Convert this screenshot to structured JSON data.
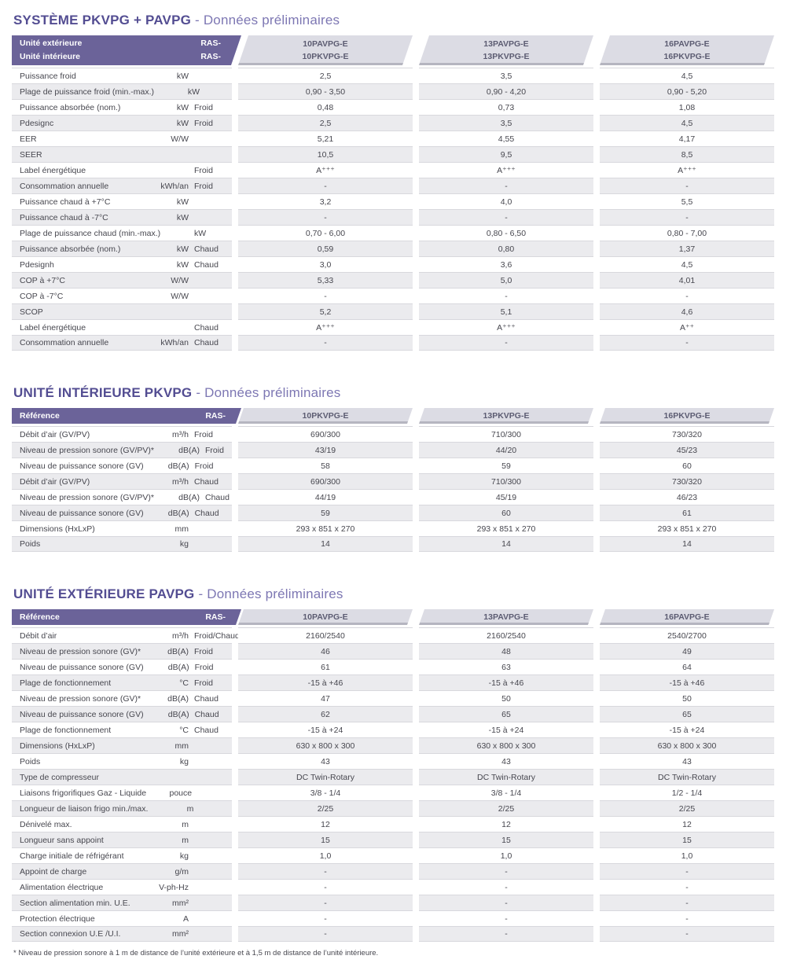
{
  "colors": {
    "header_band_purple": "#6b6399",
    "title_purple": "#534d92",
    "subtitle_purple": "#7d77b3",
    "column_header_bg": "#dcdce4",
    "column_header_shadow": "#b5b5c0",
    "row_stripe_gray": "#ebebee"
  },
  "footnote": "* Niveau de pression sonore à 1 m de distance de l’unité extérieure et à 1,5 m de distance de l’unité intérieure.",
  "sections": [
    {
      "title_bold": "SYSTÈME PKVPG + PAVPG",
      "title_light": "- Données préliminaires",
      "header": {
        "left_rows": [
          {
            "label": "Unité extérieure",
            "ras": "RAS-"
          },
          {
            "label": "Unité intérieure",
            "ras": "RAS-"
          }
        ],
        "columns": [
          [
            "10PAVPG-E",
            "10PKVPG-E"
          ],
          [
            "13PAVPG-E",
            "13PKVPG-E"
          ],
          [
            "16PAVPG-E",
            "16PKVPG-E"
          ]
        ]
      },
      "rows": [
        {
          "label": "Puissance froid",
          "unit": "kW",
          "mode": "",
          "values": [
            "2,5",
            "3,5",
            "4,5"
          ]
        },
        {
          "label": "Plage de puissance froid (min.-max.)",
          "unit": "kW",
          "mode": "",
          "values": [
            "0,90 - 3,50",
            "0,90 - 4,20",
            "0,90 - 5,20"
          ]
        },
        {
          "label": "Puissance absorbée (nom.)",
          "unit": "kW",
          "mode": "Froid",
          "values": [
            "0,48",
            "0,73",
            "1,08"
          ]
        },
        {
          "label": "Pdesignc",
          "unit": "kW",
          "mode": "Froid",
          "values": [
            "2,5",
            "3,5",
            "4,5"
          ]
        },
        {
          "label": "EER",
          "unit": "W/W",
          "mode": "",
          "values": [
            "5,21",
            "4,55",
            "4,17"
          ]
        },
        {
          "label": "SEER",
          "unit": "",
          "mode": "",
          "values": [
            "10,5",
            "9,5",
            "8,5"
          ]
        },
        {
          "label": "Label énergétique",
          "unit": "",
          "mode": "Froid",
          "values": [
            "A⁺⁺⁺",
            "A⁺⁺⁺",
            "A⁺⁺⁺"
          ]
        },
        {
          "label": "Consommation annuelle",
          "unit": "kWh/an",
          "mode": "Froid",
          "values": [
            "-",
            "-",
            "-"
          ]
        },
        {
          "label": "Puissance chaud à +7°C",
          "unit": "kW",
          "mode": "",
          "values": [
            "3,2",
            "4,0",
            "5,5"
          ]
        },
        {
          "label": "Puissance chaud à -7°C",
          "unit": "kW",
          "mode": "",
          "values": [
            "-",
            "-",
            "-"
          ]
        },
        {
          "label": "Plage de puissance chaud (min.-max.)",
          "unit": "kW",
          "mode": "",
          "values": [
            "0,70 - 6,00",
            "0,80 - 6,50",
            "0,80 - 7,00"
          ]
        },
        {
          "label": "Puissance absorbée (nom.)",
          "unit": "kW",
          "mode": "Chaud",
          "values": [
            "0,59",
            "0,80",
            "1,37"
          ]
        },
        {
          "label": "Pdesignh",
          "unit": "kW",
          "mode": "Chaud",
          "values": [
            "3,0",
            "3,6",
            "4,5"
          ]
        },
        {
          "label": "COP à +7°C",
          "unit": "W/W",
          "mode": "",
          "values": [
            "5,33",
            "5,0",
            "4,01"
          ]
        },
        {
          "label": "COP à -7°C",
          "unit": "W/W",
          "mode": "",
          "values": [
            "-",
            "-",
            "-"
          ]
        },
        {
          "label": "SCOP",
          "unit": "",
          "mode": "",
          "values": [
            "5,2",
            "5,1",
            "4,6"
          ]
        },
        {
          "label": "Label énergétique",
          "unit": "",
          "mode": "Chaud",
          "values": [
            "A⁺⁺⁺",
            "A⁺⁺⁺",
            "A⁺⁺"
          ]
        },
        {
          "label": "Consommation annuelle",
          "unit": "kWh/an",
          "mode": "Chaud",
          "values": [
            "-",
            "-",
            "-"
          ]
        }
      ]
    },
    {
      "title_bold": "UNITÉ INTÉRIEURE PKVPG",
      "title_light": "- Données préliminaires",
      "header": {
        "left_rows": [
          {
            "label": "Référence",
            "ras": "RAS-"
          }
        ],
        "columns": [
          [
            "10PKVPG-E"
          ],
          [
            "13PKVPG-E"
          ],
          [
            "16PKVPG-E"
          ]
        ]
      },
      "rows": [
        {
          "label": "Débit d’air (GV/PV)",
          "unit": "m³/h",
          "mode": "Froid",
          "values": [
            "690/300",
            "710/300",
            "730/320"
          ]
        },
        {
          "label": "Niveau de pression sonore (GV/PV)*",
          "unit": "dB(A)",
          "mode": "Froid",
          "values": [
            "43/19",
            "44/20",
            "45/23"
          ]
        },
        {
          "label": "Niveau de puissance sonore (GV)",
          "unit": "dB(A)",
          "mode": "Froid",
          "values": [
            "58",
            "59",
            "60"
          ]
        },
        {
          "label": "Débit d’air (GV/PV)",
          "unit": "m³/h",
          "mode": "Chaud",
          "values": [
            "690/300",
            "710/300",
            "730/320"
          ]
        },
        {
          "label": "Niveau de pression sonore (GV/PV)*",
          "unit": "dB(A)",
          "mode": "Chaud",
          "values": [
            "44/19",
            "45/19",
            "46/23"
          ]
        },
        {
          "label": "Niveau de puissance sonore (GV)",
          "unit": "dB(A)",
          "mode": "Chaud",
          "values": [
            "59",
            "60",
            "61"
          ]
        },
        {
          "label": "Dimensions (HxLxP)",
          "unit": "mm",
          "mode": "",
          "values": [
            "293 x 851 x 270",
            "293 x 851 x 270",
            "293 x 851 x 270"
          ]
        },
        {
          "label": "Poids",
          "unit": "kg",
          "mode": "",
          "values": [
            "14",
            "14",
            "14"
          ]
        }
      ]
    },
    {
      "title_bold": "UNITÉ EXTÉRIEURE PAVPG",
      "title_light": "- Données préliminaires",
      "header": {
        "left_rows": [
          {
            "label": "Référence",
            "ras": "RAS-"
          }
        ],
        "columns": [
          [
            "10PAVPG-E"
          ],
          [
            "13PAVPG-E"
          ],
          [
            "16PAVPG-E"
          ]
        ]
      },
      "rows": [
        {
          "label": "Débit d’air",
          "unit": "m³/h",
          "mode": "Froid/Chaud",
          "values": [
            "2160/2540",
            "2160/2540",
            "2540/2700"
          ]
        },
        {
          "label": "Niveau de pression sonore (GV)*",
          "unit": "dB(A)",
          "mode": "Froid",
          "values": [
            "46",
            "48",
            "49"
          ]
        },
        {
          "label": "Niveau de puissance sonore (GV)",
          "unit": "dB(A)",
          "mode": "Froid",
          "values": [
            "61",
            "63",
            "64"
          ]
        },
        {
          "label": "Plage de fonctionnement",
          "unit": "°C",
          "mode": "Froid",
          "values": [
            "-15 à +46",
            "-15 à +46",
            "-15 à +46"
          ]
        },
        {
          "label": "Niveau de pression sonore (GV)*",
          "unit": "dB(A)",
          "mode": "Chaud",
          "values": [
            "47",
            "50",
            "50"
          ]
        },
        {
          "label": "Niveau de puissance sonore (GV)",
          "unit": "dB(A)",
          "mode": "Chaud",
          "values": [
            "62",
            "65",
            "65"
          ]
        },
        {
          "label": "Plage de fonctionnement",
          "unit": "°C",
          "mode": "Chaud",
          "values": [
            "-15 à +24",
            "-15 à +24",
            "-15 à +24"
          ]
        },
        {
          "label": "Dimensions (HxLxP)",
          "unit": "mm",
          "mode": "",
          "values": [
            "630 x 800 x 300",
            "630 x 800 x 300",
            "630 x 800 x 300"
          ]
        },
        {
          "label": "Poids",
          "unit": "kg",
          "mode": "",
          "values": [
            "43",
            "43",
            "43"
          ]
        },
        {
          "label": "Type de compresseur",
          "unit": "",
          "mode": "",
          "values": [
            "DC Twin-Rotary",
            "DC Twin-Rotary",
            "DC Twin-Rotary"
          ]
        },
        {
          "label": "Liaisons frigorifiques Gaz - Liquide",
          "unit": "pouce",
          "mode": "",
          "values": [
            "3/8 - 1/4",
            "3/8 - 1/4",
            "1/2 - 1/4"
          ]
        },
        {
          "label": "Longueur de liaison frigo min./max.",
          "unit": "m",
          "mode": "",
          "values": [
            "2/25",
            "2/25",
            "2/25"
          ]
        },
        {
          "label": "Dénivelé max.",
          "unit": "m",
          "mode": "",
          "values": [
            "12",
            "12",
            "12"
          ]
        },
        {
          "label": "Longueur sans appoint",
          "unit": "m",
          "mode": "",
          "values": [
            "15",
            "15",
            "15"
          ]
        },
        {
          "label": "Charge initiale de réfrigérant",
          "unit": "kg",
          "mode": "",
          "values": [
            "1,0",
            "1,0",
            "1,0"
          ]
        },
        {
          "label": "Appoint de charge",
          "unit": "g/m",
          "mode": "",
          "values": [
            "-",
            "-",
            "-"
          ]
        },
        {
          "label": "Alimentation électrique",
          "unit": "V-ph-Hz",
          "mode": "",
          "values": [
            "-",
            "-",
            "-"
          ]
        },
        {
          "label": "Section alimentation min. U.E.",
          "unit": "mm²",
          "mode": "",
          "values": [
            "-",
            "-",
            "-"
          ]
        },
        {
          "label": "Protection électrique",
          "unit": "A",
          "mode": "",
          "values": [
            "-",
            "-",
            "-"
          ]
        },
        {
          "label": "Section connexion U.E /U.I.",
          "unit": "mm²",
          "mode": "",
          "values": [
            "-",
            "-",
            "-"
          ]
        }
      ]
    }
  ]
}
